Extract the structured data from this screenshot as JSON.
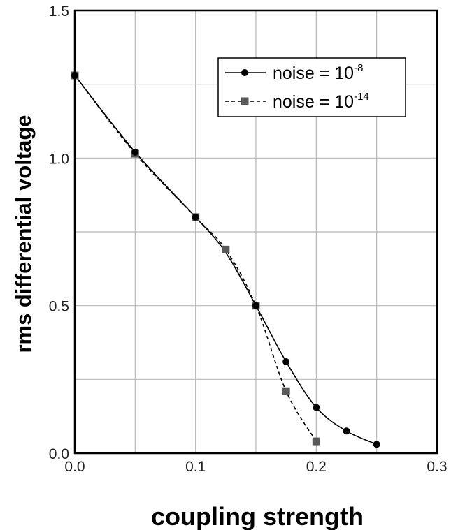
{
  "chart_data": {
    "type": "line",
    "title": "",
    "xlabel": "coupling strength",
    "ylabel": "rms differential voltage",
    "xlim": [
      0.0,
      0.3
    ],
    "ylim": [
      0.0,
      1.5
    ],
    "grid": true,
    "legend_position": "top-right",
    "x_ticks": [
      0.0,
      0.1,
      0.2,
      0.3
    ],
    "x_tick_labels": [
      "0.0",
      "0.1",
      "0.2",
      "0.3"
    ],
    "x_minor_grid": [
      0.05,
      0.15,
      0.25
    ],
    "y_ticks": [
      0.0,
      0.5,
      1.0,
      1.5
    ],
    "y_tick_labels": [
      "0.0",
      "0.5",
      "1.0",
      "1.5"
    ],
    "y_minor_grid": [
      0.25,
      0.75,
      1.25
    ],
    "series": [
      {
        "legend_text": "noise = 10",
        "legend_exponent": "-8",
        "line": "solid",
        "marker": "circle",
        "color": "#000000",
        "x": [
          0.0,
          0.05,
          0.1,
          0.125,
          0.15,
          0.175,
          0.2,
          0.225,
          0.25
        ],
        "y": [
          1.28,
          1.02,
          0.8,
          0.68,
          0.5,
          0.31,
          0.155,
          0.075,
          0.03
        ],
        "marked_x": [
          0.0,
          0.05,
          0.1,
          0.15,
          0.175,
          0.2,
          0.225,
          0.25
        ],
        "marked_y": [
          1.28,
          1.02,
          0.8,
          0.5,
          0.31,
          0.155,
          0.075,
          0.03
        ]
      },
      {
        "legend_text": "noise = 10",
        "legend_exponent": "-14",
        "line": "dashed",
        "marker": "square",
        "color": "#595959",
        "x": [
          0.0,
          0.05,
          0.1,
          0.125,
          0.15,
          0.175,
          0.2
        ],
        "y": [
          1.28,
          1.015,
          0.8,
          0.69,
          0.5,
          0.21,
          0.04
        ],
        "marked_x": [
          0.0,
          0.05,
          0.1,
          0.125,
          0.15,
          0.175,
          0.2
        ],
        "marked_y": [
          1.28,
          1.015,
          0.8,
          0.69,
          0.5,
          0.21,
          0.04
        ]
      }
    ]
  }
}
